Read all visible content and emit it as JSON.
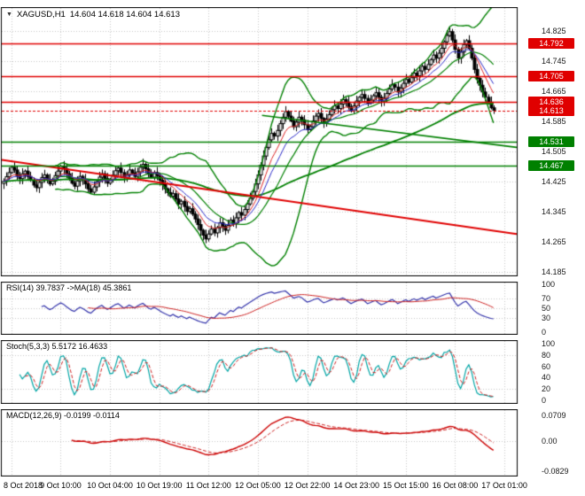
{
  "main": {
    "dropdown_icon": "▼",
    "symbol": "XAGUSD,H1",
    "ohlc": "14.604 14.618 14.604 14.613"
  },
  "chart_data": {
    "type": "candlestick",
    "title": "XAGUSD,H1",
    "timeframe": "H1",
    "total_slots": 188,
    "x_labels": [
      "8 Oct 2018",
      "9 Oct 10:00",
      "10 Oct 04:00",
      "10 Oct 19:00",
      "11 Oct 12:00",
      "12 Oct 05:00",
      "12 Oct 22:00",
      "14 Oct 23:00",
      "15 Oct 15:00",
      "16 Oct 08:00",
      "17 Oct 01:00"
    ],
    "x_label_slots": [
      3,
      21,
      39,
      57,
      75,
      93,
      111,
      129,
      147,
      165,
      183
    ],
    "price_axis": {
      "min": 14.175,
      "max": 14.885,
      "ticks": [
        14.825,
        14.745,
        14.665,
        14.585,
        14.505,
        14.425,
        14.345,
        14.265,
        14.185
      ]
    },
    "grid_color": "#c6c6c6",
    "candle_wick": {
      "base": 0.003,
      "amp": 0.012
    },
    "candle_colors": {
      "bull_fill": "#ffffff",
      "bear_fill": "#000000",
      "outline": "#000000"
    },
    "levels": [
      {
        "price": 14.792,
        "color": "#e00000",
        "type": "resistance"
      },
      {
        "price": 14.705,
        "color": "#e00000",
        "type": "resistance"
      },
      {
        "price": 14.636,
        "color": "#e00000",
        "type": "resistance"
      },
      {
        "price": 14.531,
        "color": "#008000",
        "type": "support"
      },
      {
        "price": 14.467,
        "color": "#008000",
        "type": "support"
      }
    ],
    "current_price": {
      "price": 14.613,
      "color": "#e00000"
    },
    "trendlines": [
      {
        "from_slot": 0,
        "from_price": 14.482,
        "to_slot": 188,
        "to_price": 14.285,
        "color": "#e00000",
        "width": 2
      },
      {
        "from_slot": 95,
        "from_price": 14.6,
        "to_slot": 188,
        "to_price": 14.515,
        "color": "#008000",
        "width": 1.6
      }
    ],
    "closes": [
      14.425,
      14.437,
      14.448,
      14.462,
      14.455,
      14.44,
      14.432,
      14.445,
      14.452,
      14.438,
      14.428,
      14.415,
      14.408,
      14.422,
      14.435,
      14.442,
      14.43,
      14.418,
      14.425,
      14.44,
      14.452,
      14.465,
      14.458,
      14.445,
      14.433,
      14.42,
      14.412,
      14.426,
      14.438,
      14.43,
      14.418,
      14.405,
      14.396,
      14.41,
      14.424,
      14.436,
      14.445,
      14.432,
      14.42,
      14.428,
      14.441,
      14.453,
      14.46,
      14.448,
      14.435,
      14.442,
      14.455,
      14.447,
      14.438,
      14.45,
      14.462,
      14.47,
      14.458,
      14.444,
      14.436,
      14.448,
      14.44,
      14.428,
      14.416,
      14.405,
      14.395,
      14.385,
      14.392,
      14.378,
      14.365,
      14.372,
      14.358,
      14.345,
      14.352,
      14.338,
      14.325,
      14.31,
      14.295,
      14.282,
      14.272,
      14.285,
      14.298,
      14.288,
      14.302,
      14.315,
      14.305,
      14.295,
      14.308,
      14.322,
      14.312,
      14.328,
      14.342,
      14.335,
      14.35,
      14.365,
      14.38,
      14.398,
      14.418,
      14.442,
      14.468,
      14.492,
      14.515,
      14.535,
      14.552,
      14.545,
      14.56,
      14.578,
      14.595,
      14.61,
      14.598,
      14.585,
      14.57,
      14.582,
      14.595,
      14.588,
      14.575,
      14.562,
      14.57,
      14.585,
      14.598,
      14.605,
      14.592,
      14.58,
      14.59,
      14.602,
      14.615,
      14.625,
      14.618,
      14.63,
      14.642,
      14.635,
      14.622,
      14.612,
      14.625,
      14.638,
      14.648,
      14.655,
      14.645,
      14.632,
      14.64,
      14.652,
      14.66,
      14.648,
      14.638,
      14.645,
      14.658,
      14.67,
      14.682,
      14.675,
      14.662,
      14.672,
      14.685,
      14.695,
      14.688,
      14.7,
      14.712,
      14.705,
      14.718,
      14.73,
      14.722,
      14.735,
      14.748,
      14.76,
      14.752,
      14.765,
      14.778,
      14.795,
      14.812,
      14.822,
      14.8,
      14.775,
      14.752,
      14.768,
      14.788,
      14.798,
      14.778,
      14.752,
      14.722,
      14.698,
      14.68,
      14.662,
      14.648,
      14.635,
      14.62,
      14.613
    ],
    "indicators": {
      "bollinger": {
        "period": 20,
        "mult": 2.3,
        "color": "#008000"
      },
      "ema_fast": {
        "period": 8,
        "color": "#dd2222"
      },
      "ema_mid": {
        "period": 13,
        "color": "#2929c8"
      },
      "ema_long": {
        "period": 100,
        "color": "#008000"
      },
      "rsi": {
        "header": "RSI(14) 39.7837 ->MA(18) 45.3861",
        "period": 14,
        "value": "39.7837",
        "ma_period": 18,
        "ma_value": "45.3861",
        "color": "#3333aa",
        "ma_color": "#cc2222",
        "ticks": [
          100,
          70,
          50,
          30,
          0
        ],
        "level_lines": [
          70,
          50,
          30
        ],
        "range": [
          -4,
          104
        ]
      },
      "stoch": {
        "header": "Stoch(5,3,3) 5.5172 16.4633",
        "k_period": 5,
        "d_period": 3,
        "slowing": 3,
        "value": "5.5172",
        "signal": "16.4633",
        "k_color": "#00a5a5",
        "d_color": "#cc2222",
        "ticks": [
          100,
          80,
          60,
          40,
          20,
          0
        ],
        "level_lines": [
          80,
          20
        ],
        "range": [
          -4,
          104
        ]
      },
      "macd": {
        "header": "MACD(12,26,9) -0.0199 -0.0114",
        "fast": 12,
        "slow": 26,
        "signal_period": 9,
        "value": "-0.0199",
        "signal_value": "-0.0114",
        "color": "#cc0000",
        "signal_color": "#cc2222",
        "ticks": [
          {
            "v": 0.0709,
            "label": "0.0709"
          },
          {
            "v": 0,
            "label": "0.00"
          },
          {
            "v": -0.0829,
            "label": "-0.0829"
          }
        ],
        "range": [
          -0.095,
          0.085
        ]
      }
    }
  }
}
